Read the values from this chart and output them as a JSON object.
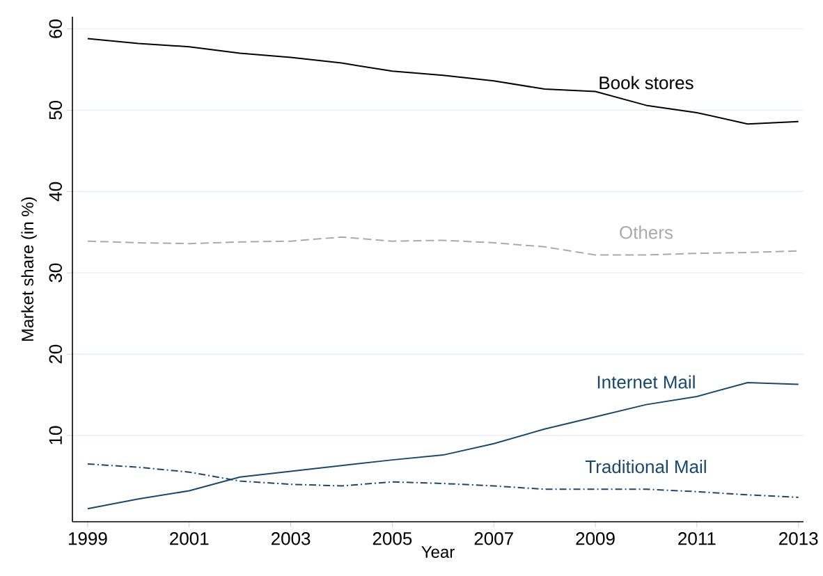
{
  "chart_data": {
    "type": "line",
    "xlabel": "Year",
    "ylabel": "Market share (in %)",
    "x": [
      1999,
      2000,
      2001,
      2002,
      2003,
      2004,
      2005,
      2006,
      2007,
      2008,
      2009,
      2010,
      2011,
      2012,
      2013
    ],
    "series": [
      {
        "name": "Book stores",
        "color": "#000000",
        "line_style": "solid",
        "values": [
          58.8,
          58.2,
          57.8,
          57.0,
          56.5,
          55.8,
          54.8,
          54.3,
          53.6,
          52.6,
          52.3,
          50.6,
          49.7,
          48.3,
          48.6
        ]
      },
      {
        "name": "Others",
        "color": "#aaaaaa",
        "line_style": "dashed",
        "values": [
          33.9,
          33.7,
          33.6,
          33.8,
          33.9,
          34.4,
          33.9,
          34.0,
          33.7,
          33.2,
          32.2,
          32.2,
          32.4,
          32.5,
          32.7
        ]
      },
      {
        "name": "Internet Mail",
        "color": "#1a476f",
        "line_style": "solid",
        "values": [
          1.0,
          2.2,
          3.2,
          4.9,
          5.6,
          6.3,
          7.0,
          7.6,
          9.0,
          10.8,
          12.3,
          13.8,
          14.8,
          16.5,
          16.3
        ]
      },
      {
        "name": "Traditional Mail",
        "color": "#1a476f",
        "line_style": "dashdot",
        "values": [
          6.5,
          6.1,
          5.5,
          4.4,
          4.0,
          3.8,
          4.3,
          4.1,
          3.8,
          3.4,
          3.4,
          3.4,
          3.1,
          2.7,
          2.4
        ]
      }
    ],
    "xlim": [
      1998.7,
      2013.1
    ],
    "ylim": [
      -0.6,
      61.5
    ],
    "xticks": [
      1999,
      2001,
      2003,
      2005,
      2007,
      2009,
      2011,
      2013
    ],
    "yticks": [
      10,
      20,
      30,
      40,
      50,
      60
    ],
    "grid": "y",
    "legend": false,
    "marker": "none"
  }
}
